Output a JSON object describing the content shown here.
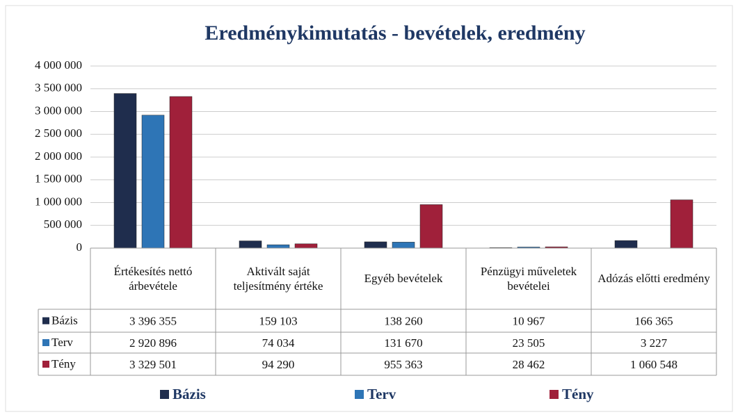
{
  "chart_data": {
    "type": "bar",
    "title": "Eredménykimutatás  - bevételek, eredmény",
    "categories": [
      "Értékesítés nettó árbevétele",
      "Aktivált saját teljesítmény értéke",
      "Egyéb bevételek",
      "Pénzügyi műveletek bevételei",
      "Adózás előtti eredmény"
    ],
    "series": [
      {
        "name": "Bázis",
        "color": "#1f2d4d",
        "values": [
          3396355,
          159103,
          138260,
          10967,
          166365
        ],
        "value_labels": [
          "3 396 355",
          "159 103",
          "138 260",
          "10 967",
          "166 365"
        ]
      },
      {
        "name": "Terv",
        "color": "#2e75b6",
        "values": [
          2920896,
          74034,
          131670,
          23505,
          3227
        ],
        "value_labels": [
          "2 920 896",
          "74 034",
          "131 670",
          "23 505",
          "3 227"
        ]
      },
      {
        "name": "Tény",
        "color": "#a0203a",
        "values": [
          3329501,
          94290,
          955363,
          28462,
          1060548
        ],
        "value_labels": [
          "3 329 501",
          "94 290",
          "955 363",
          "28 462",
          "1 060 548"
        ]
      }
    ],
    "ylim": [
      0,
      4000000
    ],
    "yticks": [
      0,
      {
        "value": 500000,
        "label": "500 000"
      },
      {
        "value": 1000000,
        "label": "1 000 000"
      },
      {
        "value": 1500000,
        "label": "1 500 000"
      },
      {
        "value": 2000000,
        "label": "2 000 000"
      },
      {
        "value": 2500000,
        "label": "2 500 000"
      },
      {
        "value": 3000000,
        "label": "3 000 000"
      },
      {
        "value": 3500000,
        "label": "3 500 000"
      },
      {
        "value": 4000000,
        "label": "4 000 000"
      }
    ],
    "grid": true,
    "legend": "bottom"
  }
}
